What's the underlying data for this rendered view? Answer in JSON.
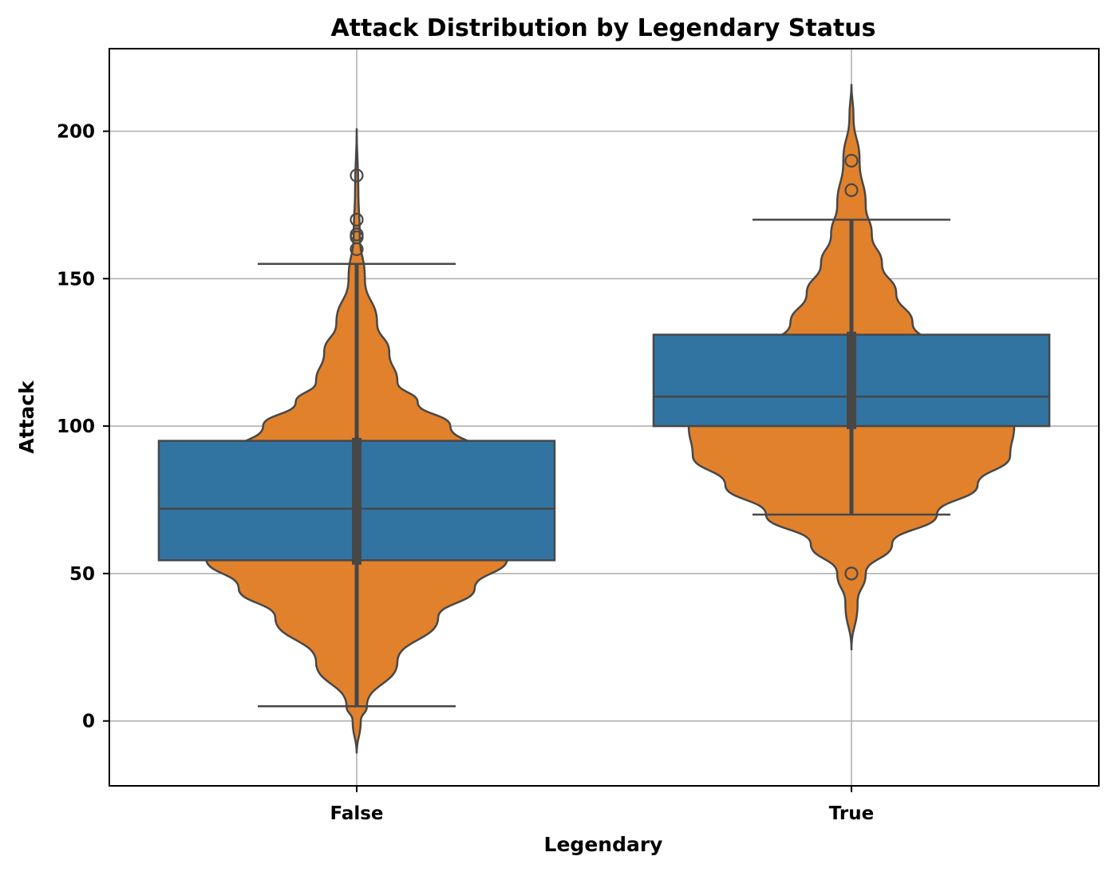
{
  "chart_data": {
    "type": "violin",
    "title": "Attack Distribution by Legendary Status",
    "xlabel": "Legendary",
    "ylabel": "Attack",
    "categories": [
      "False",
      "True"
    ],
    "ylim": [
      -22,
      228
    ],
    "yticks": [
      0,
      50,
      100,
      150,
      200
    ],
    "grid": true,
    "colors": {
      "violin": "#e1812c",
      "box": "#3274a1",
      "edge": "#474747",
      "grid": "#b0b0b0"
    },
    "series": [
      {
        "category": "False",
        "violin_range": [
          -11,
          201
        ],
        "inner_box": {
          "q1": 53,
          "q3": 96,
          "whisker_low": 5,
          "whisker_high": 155
        },
        "box": {
          "q1": 54.5,
          "median": 72,
          "q3": 95,
          "whisker_low": 5,
          "whisker_high": 155
        },
        "outliers": [
          160,
          164,
          165,
          170,
          185
        ],
        "density": [
          [
            -11,
            0.0
          ],
          [
            0,
            0.02
          ],
          [
            5,
            0.05
          ],
          [
            20,
            0.2
          ],
          [
            35,
            0.4
          ],
          [
            45,
            0.58
          ],
          [
            55,
            0.74
          ],
          [
            65,
            0.8
          ],
          [
            75,
            0.78
          ],
          [
            90,
            0.63
          ],
          [
            100,
            0.46
          ],
          [
            108,
            0.3
          ],
          [
            115,
            0.2
          ],
          [
            125,
            0.16
          ],
          [
            135,
            0.1
          ],
          [
            150,
            0.04
          ],
          [
            165,
            0.015
          ],
          [
            180,
            0.008
          ],
          [
            201,
            0.0
          ]
        ]
      },
      {
        "category": "True",
        "violin_range": [
          24,
          216
        ],
        "inner_box": {
          "q1": 99,
          "q3": 132,
          "whisker_low": 70,
          "whisker_high": 170
        },
        "box": {
          "q1": 100,
          "median": 110,
          "q3": 131,
          "whisker_low": 70,
          "whisker_high": 170
        },
        "outliers": [
          50,
          180,
          190
        ],
        "density": [
          [
            24,
            0.0
          ],
          [
            40,
            0.03
          ],
          [
            50,
            0.07
          ],
          [
            60,
            0.2
          ],
          [
            70,
            0.42
          ],
          [
            80,
            0.62
          ],
          [
            90,
            0.78
          ],
          [
            100,
            0.8
          ],
          [
            105,
            0.78
          ],
          [
            115,
            0.6
          ],
          [
            125,
            0.43
          ],
          [
            135,
            0.3
          ],
          [
            145,
            0.22
          ],
          [
            155,
            0.15
          ],
          [
            165,
            0.1
          ],
          [
            175,
            0.07
          ],
          [
            190,
            0.04
          ],
          [
            205,
            0.01
          ],
          [
            216,
            0.0
          ]
        ]
      }
    ]
  }
}
